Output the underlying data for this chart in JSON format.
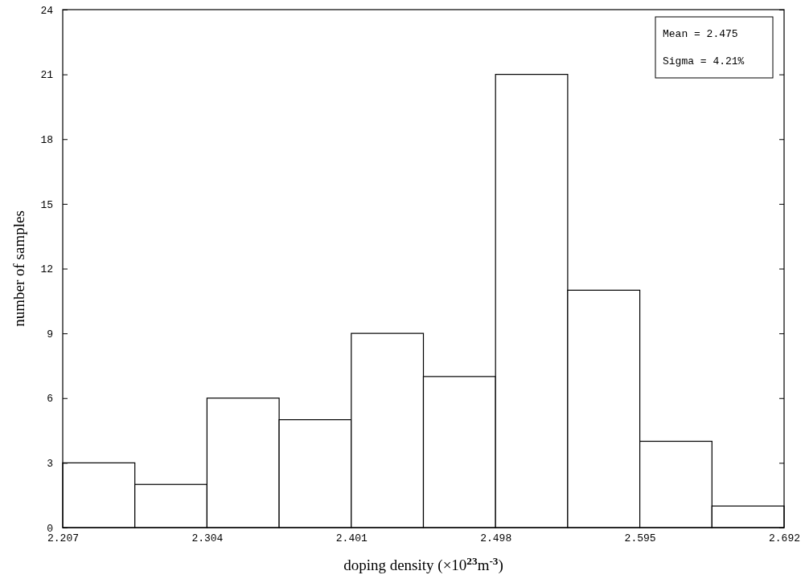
{
  "chart_data": {
    "type": "histogram",
    "xlabel": "doping density (×10$^{23}$m$^{-3}$)",
    "ylabel": "number of samples",
    "bins": [
      2.207,
      2.2555,
      2.304,
      2.3525,
      2.401,
      2.4495,
      2.498,
      2.5465,
      2.595,
      2.6435,
      2.692
    ],
    "values": [
      3,
      2,
      6,
      5,
      9,
      7,
      21,
      11,
      4,
      1
    ],
    "color": "#ffffff",
    "xlim": [
      2.207,
      2.692
    ],
    "xticks": [
      {
        "value": 2.207,
        "label": "2.207"
      },
      {
        "value": 2.304,
        "label": "2.304"
      },
      {
        "value": 2.401,
        "label": "2.401"
      },
      {
        "value": 2.498,
        "label": "2.498"
      },
      {
        "value": 2.595,
        "label": "2.595"
      },
      {
        "value": 2.692,
        "label": "2.692"
      }
    ],
    "ylim": [
      0,
      24
    ],
    "yticks": [
      0,
      3,
      6,
      9,
      12,
      15,
      18,
      21,
      24
    ],
    "annotations": [
      "Mean = 2.475",
      "Sigma = 4.21%"
    ],
    "grid": false
  }
}
